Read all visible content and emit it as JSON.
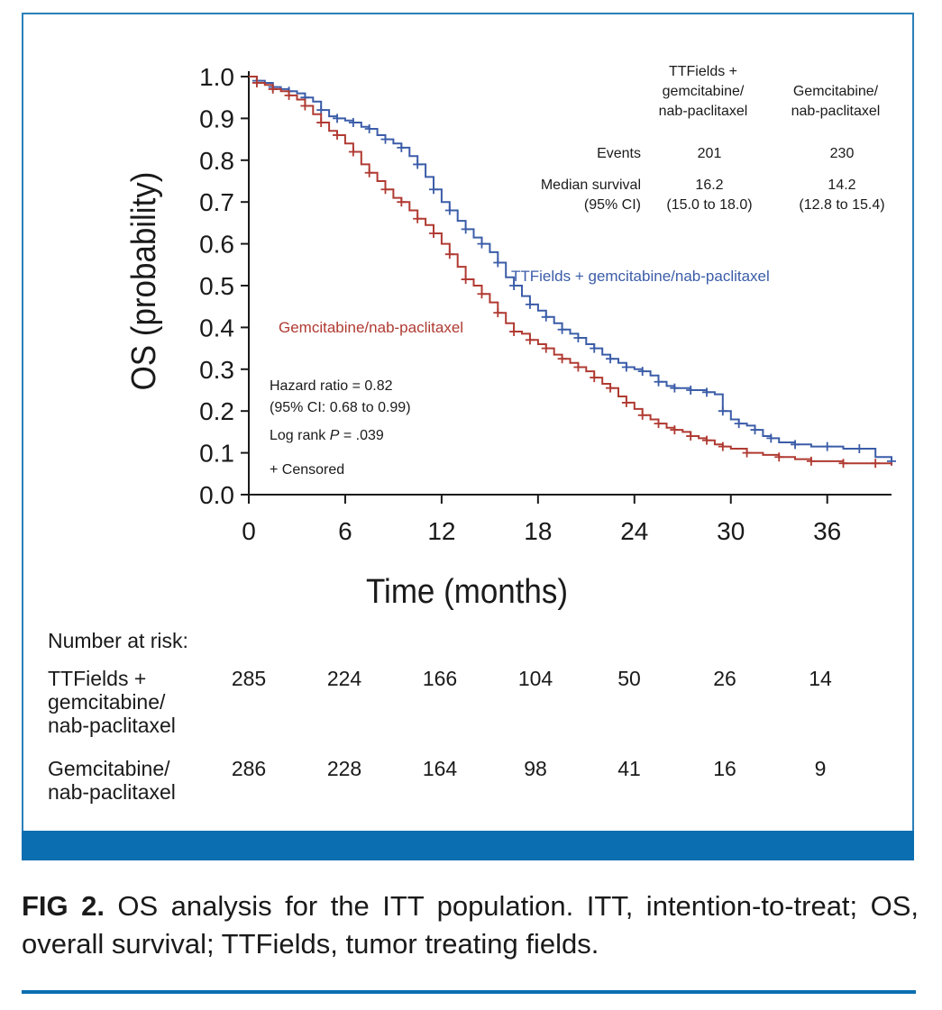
{
  "colors": {
    "ttfields": "#3b5ca8",
    "gemcitabine": "#b03a32",
    "frame": "#2a7fb8",
    "bar": "#0a6eb0"
  },
  "chart_data": {
    "type": "line",
    "subtype": "kaplan-meier",
    "xlabel": "Time (months)",
    "ylabel": "OS (probability)",
    "xlim": [
      0,
      40
    ],
    "ylim": [
      0,
      1.0
    ],
    "x_ticks": [
      0,
      6,
      12,
      18,
      24,
      30,
      36
    ],
    "y_ticks": [
      "0.0",
      "0.1",
      "0.2",
      "0.3",
      "0.4",
      "0.5",
      "0.6",
      "0.7",
      "0.8",
      "0.9",
      "1.0"
    ],
    "series": [
      {
        "name": "TTFields + gemcitabine/nab-paclitaxel",
        "color": "#3b5ca8",
        "x": [
          0,
          0.5,
          1,
          1.5,
          2,
          2.5,
          3,
          3.5,
          4,
          4.5,
          5,
          5.5,
          6,
          6.5,
          7,
          7.5,
          8,
          8.5,
          9,
          9.5,
          10,
          10.5,
          11,
          11.5,
          12,
          12.5,
          13,
          13.5,
          14,
          14.5,
          15,
          15.5,
          16,
          16.5,
          17,
          17.5,
          18,
          18.5,
          19,
          19.5,
          20,
          20.5,
          21,
          21.5,
          22,
          22.5,
          23,
          23.5,
          24,
          24.5,
          25,
          25.5,
          26,
          26.5,
          27,
          27.5,
          28,
          28.5,
          29,
          29.5,
          30,
          30.5,
          31,
          31.5,
          32,
          32.5,
          33,
          34,
          35,
          36,
          37,
          38,
          39,
          40
        ],
        "y": [
          1.0,
          0.99,
          0.985,
          0.975,
          0.97,
          0.965,
          0.96,
          0.95,
          0.94,
          0.92,
          0.905,
          0.9,
          0.895,
          0.89,
          0.88,
          0.875,
          0.86,
          0.85,
          0.84,
          0.83,
          0.81,
          0.79,
          0.76,
          0.73,
          0.7,
          0.68,
          0.655,
          0.635,
          0.615,
          0.6,
          0.58,
          0.555,
          0.52,
          0.5,
          0.475,
          0.455,
          0.44,
          0.425,
          0.41,
          0.395,
          0.385,
          0.375,
          0.36,
          0.35,
          0.335,
          0.325,
          0.315,
          0.305,
          0.3,
          0.295,
          0.285,
          0.27,
          0.26,
          0.255,
          0.255,
          0.25,
          0.25,
          0.245,
          0.24,
          0.2,
          0.18,
          0.17,
          0.165,
          0.155,
          0.14,
          0.135,
          0.125,
          0.12,
          0.115,
          0.115,
          0.11,
          0.11,
          0.09,
          0.08
        ]
      },
      {
        "name": "Gemcitabine/nab-paclitaxel",
        "color": "#b03a32",
        "x": [
          0,
          0.5,
          1,
          1.5,
          2,
          2.5,
          3,
          3.5,
          4,
          4.5,
          5,
          5.5,
          6,
          6.5,
          7,
          7.5,
          8,
          8.5,
          9,
          9.5,
          10,
          10.5,
          11,
          11.5,
          12,
          12.5,
          13,
          13.5,
          14,
          14.5,
          15,
          15.5,
          16,
          16.5,
          17,
          17.5,
          18,
          18.5,
          19,
          19.5,
          20,
          20.5,
          21,
          21.5,
          22,
          22.5,
          23,
          23.5,
          24,
          24.5,
          25,
          25.5,
          26,
          26.5,
          27,
          27.5,
          28,
          28.5,
          29,
          29.5,
          30,
          31,
          32,
          33,
          34,
          35,
          36,
          37,
          38,
          39,
          40
        ],
        "y": [
          1.0,
          0.985,
          0.98,
          0.97,
          0.965,
          0.955,
          0.945,
          0.93,
          0.91,
          0.89,
          0.87,
          0.86,
          0.84,
          0.82,
          0.79,
          0.77,
          0.75,
          0.73,
          0.71,
          0.7,
          0.68,
          0.66,
          0.645,
          0.625,
          0.6,
          0.575,
          0.545,
          0.515,
          0.5,
          0.48,
          0.46,
          0.435,
          0.41,
          0.39,
          0.385,
          0.37,
          0.36,
          0.35,
          0.335,
          0.325,
          0.315,
          0.305,
          0.295,
          0.28,
          0.265,
          0.255,
          0.235,
          0.22,
          0.205,
          0.19,
          0.18,
          0.17,
          0.16,
          0.155,
          0.15,
          0.14,
          0.135,
          0.13,
          0.12,
          0.115,
          0.11,
          0.1,
          0.095,
          0.09,
          0.085,
          0.08,
          0.08,
          0.075,
          0.075,
          0.075,
          0.07
        ]
      }
    ],
    "series_labels": [
      {
        "text": "TTFields + gemcitabine/nab-paclitaxel",
        "color": "#3b5ca8"
      },
      {
        "text": "Gemcitabine/nab-paclitaxel",
        "color": "#b03a32"
      }
    ],
    "stats_table": {
      "col1_header": [
        "TTFields +",
        "gemcitabine/",
        "nab-paclitaxel"
      ],
      "col2_header": [
        "Gemcitabine/",
        "nab-paclitaxel"
      ],
      "rows": [
        {
          "label": [
            "Events"
          ],
          "col1": [
            "201"
          ],
          "col2": [
            "230"
          ]
        },
        {
          "label": [
            "Median survival",
            "(95% CI)"
          ],
          "col1": [
            "16.2",
            "(15.0 to 18.0)"
          ],
          "col2": [
            "14.2",
            "(12.8 to 15.4)"
          ]
        }
      ]
    },
    "annotations": {
      "hazard_ratio": "Hazard ratio = 0.82",
      "hazard_ci": "(95% CI: 0.68 to 0.99)",
      "log_rank_prefix": "Log rank ",
      "log_rank_p": "P",
      "log_rank_value": " = .039",
      "censored": "+ Censored"
    }
  },
  "risk_table": {
    "title": "Number at risk:",
    "rows": [
      {
        "label": "TTFields +\ngemcitabine/\nnab-paclitaxel",
        "values": [
          "285",
          "224",
          "166",
          "104",
          "50",
          "26",
          "14"
        ]
      },
      {
        "label": "Gemcitabine/\nnab-paclitaxel",
        "values": [
          "286",
          "228",
          "164",
          "98",
          "41",
          "16",
          "9"
        ]
      }
    ]
  },
  "caption": {
    "label": "FIG 2.",
    "text": " OS analysis for the ITT population. ITT, intention-to-treat; OS, overall survival; TTFields, tumor treating fields."
  }
}
